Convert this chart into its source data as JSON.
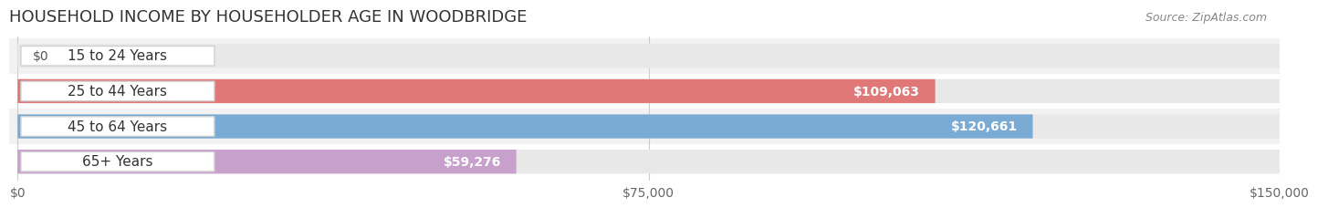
{
  "title": "HOUSEHOLD INCOME BY HOUSEHOLDER AGE IN WOODBRIDGE",
  "source": "Source: ZipAtlas.com",
  "categories": [
    "15 to 24 Years",
    "25 to 44 Years",
    "45 to 64 Years",
    "65+ Years"
  ],
  "values": [
    0,
    109063,
    120661,
    59276
  ],
  "bar_colors": [
    "#f2c89b",
    "#e07878",
    "#7aabd4",
    "#c8a0cc"
  ],
  "bar_bg_color": "#e8e8e8",
  "row_bg_colors": [
    "#f2f2f2",
    "#ffffff",
    "#f2f2f2",
    "#ffffff"
  ],
  "value_labels": [
    "$0",
    "$109,063",
    "$120,661",
    "$59,276"
  ],
  "xlim": [
    0,
    150000
  ],
  "xticks": [
    0,
    75000,
    150000
  ],
  "xtick_labels": [
    "$0",
    "$75,000",
    "$150,000"
  ],
  "title_fontsize": 13,
  "source_fontsize": 9,
  "label_fontsize": 11,
  "value_fontsize": 10,
  "tick_fontsize": 10,
  "background_color": "#ffffff",
  "grid_color": "#cccccc"
}
